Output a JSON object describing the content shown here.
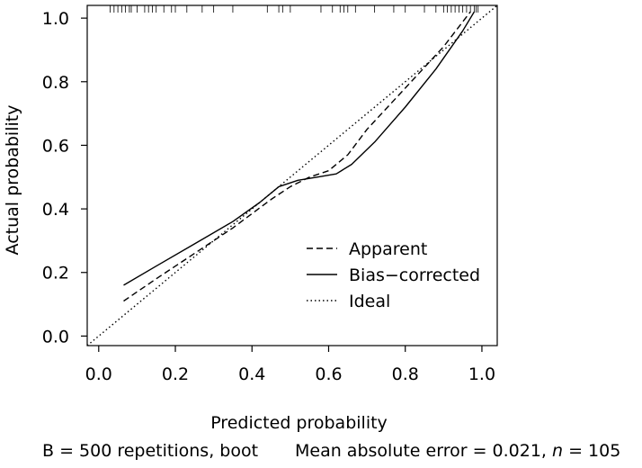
{
  "chart_data": {
    "type": "line",
    "title": "",
    "xlabel": "Predicted probability",
    "ylabel": "Actual probability",
    "xlim": [
      -0.03,
      1.04
    ],
    "ylim": [
      -0.03,
      1.04
    ],
    "xticks": [
      0.0,
      0.2,
      0.4,
      0.6,
      0.8,
      1.0
    ],
    "xtick_labels": [
      "0.0",
      "0.2",
      "0.4",
      "0.6",
      "0.8",
      "1.0"
    ],
    "yticks": [
      0.0,
      0.2,
      0.4,
      0.6,
      0.8,
      1.0
    ],
    "ytick_labels": [
      "0.0",
      "0.2",
      "0.4",
      "0.6",
      "0.8",
      "1.0"
    ],
    "grid": false,
    "legend_position": "bottom-right",
    "series": [
      {
        "name": "Apparent",
        "style": "dashed",
        "x": [
          0.065,
          0.15,
          0.25,
          0.35,
          0.45,
          0.5,
          0.55,
          0.6,
          0.65,
          0.7,
          0.8,
          0.9,
          0.97
        ],
        "y": [
          0.11,
          0.18,
          0.26,
          0.34,
          0.43,
          0.47,
          0.5,
          0.52,
          0.57,
          0.65,
          0.78,
          0.91,
          1.02
        ]
      },
      {
        "name": "Bias−corrected",
        "style": "solid",
        "x": [
          0.065,
          0.15,
          0.25,
          0.35,
          0.42,
          0.47,
          0.52,
          0.57,
          0.62,
          0.66,
          0.72,
          0.8,
          0.88,
          0.95,
          0.98
        ],
        "y": [
          0.16,
          0.22,
          0.29,
          0.36,
          0.42,
          0.47,
          0.49,
          0.5,
          0.51,
          0.54,
          0.61,
          0.72,
          0.84,
          0.96,
          1.02
        ]
      },
      {
        "name": "Ideal",
        "style": "dotted",
        "x": [
          -0.03,
          1.04
        ],
        "y": [
          -0.03,
          1.04
        ]
      }
    ],
    "rug_x": [
      0.03,
      0.04,
      0.05,
      0.06,
      0.07,
      0.08,
      0.085,
      0.1,
      0.12,
      0.13,
      0.14,
      0.15,
      0.17,
      0.19,
      0.2,
      0.23,
      0.27,
      0.3,
      0.35,
      0.44,
      0.47,
      0.48,
      0.5,
      0.58,
      0.61,
      0.63,
      0.64,
      0.65,
      0.67,
      0.72,
      0.77,
      0.8,
      0.85,
      0.88,
      0.9,
      0.91,
      0.92,
      0.93,
      0.94,
      0.95,
      0.96,
      0.97,
      0.98,
      0.985,
      0.99
    ]
  },
  "footer": {
    "left": "B = 500 repetitions, boot",
    "right_prefix": "Mean absolute error = 0.021, ",
    "n_symbol": "n",
    "right_suffix": " = 105"
  }
}
